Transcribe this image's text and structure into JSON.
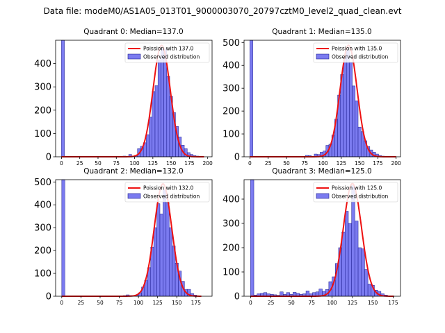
{
  "figure": {
    "suptitle": "Data file: modeM0/AS1A05_013T01_9000003070_20797cztM0_level2_quad_clean.evt"
  },
  "colors": {
    "bar_fill": "#7b7bf0",
    "bar_edge": "#1a1a8c",
    "curve": "#ee1111",
    "axis": "#000000"
  },
  "chart_data": [
    {
      "type": "bar",
      "title": "Quadrant 0: Median=137.0",
      "xlim": [
        -8,
        206
      ],
      "ylim": [
        0,
        500
      ],
      "xticks": [
        0,
        25,
        50,
        75,
        100,
        125,
        150,
        175,
        200
      ],
      "yticks": [
        0,
        100,
        200,
        300,
        400
      ],
      "legend_position": "top-right",
      "legend": [
        "Poission with 137.0",
        "Observed distribution"
      ],
      "bin_width": 4,
      "bins": [
        {
          "x": 0,
          "y": 500
        },
        {
          "x": 68,
          "y": 2
        },
        {
          "x": 84,
          "y": 3
        },
        {
          "x": 92,
          "y": 10
        },
        {
          "x": 96,
          "y": 2
        },
        {
          "x": 100,
          "y": 6
        },
        {
          "x": 104,
          "y": 35
        },
        {
          "x": 108,
          "y": 45
        },
        {
          "x": 112,
          "y": 60
        },
        {
          "x": 116,
          "y": 95
        },
        {
          "x": 120,
          "y": 170
        },
        {
          "x": 124,
          "y": 280
        },
        {
          "x": 128,
          "y": 305
        },
        {
          "x": 132,
          "y": 415
        },
        {
          "x": 136,
          "y": 465
        },
        {
          "x": 140,
          "y": 460
        },
        {
          "x": 144,
          "y": 345
        },
        {
          "x": 148,
          "y": 260
        },
        {
          "x": 152,
          "y": 190
        },
        {
          "x": 156,
          "y": 130
        },
        {
          "x": 160,
          "y": 85
        },
        {
          "x": 164,
          "y": 50
        },
        {
          "x": 168,
          "y": 35
        },
        {
          "x": 172,
          "y": 18
        },
        {
          "x": 176,
          "y": 10
        },
        {
          "x": 180,
          "y": 5
        },
        {
          "x": 184,
          "y": 3
        },
        {
          "x": 188,
          "y": 2
        }
      ],
      "poisson": {
        "lambda": 137.0,
        "peak": 478,
        "x_range": [
          0,
          195
        ]
      }
    },
    {
      "type": "bar",
      "title": "Quadrant 1: Median=135.0",
      "xlim": [
        -8,
        206
      ],
      "ylim": [
        0,
        510
      ],
      "xticks": [
        0,
        25,
        50,
        75,
        100,
        125,
        150,
        175,
        200
      ],
      "yticks": [
        0,
        100,
        200,
        300,
        400,
        500
      ],
      "legend_position": "top-right",
      "legend": [
        "Poission with 135.0",
        "Observed distribution"
      ],
      "bin_width": 4,
      "bins": [
        {
          "x": 0,
          "y": 510
        },
        {
          "x": 72,
          "y": 2
        },
        {
          "x": 76,
          "y": 6
        },
        {
          "x": 80,
          "y": 5
        },
        {
          "x": 88,
          "y": 12
        },
        {
          "x": 92,
          "y": 10
        },
        {
          "x": 96,
          "y": 20
        },
        {
          "x": 100,
          "y": 25
        },
        {
          "x": 104,
          "y": 50
        },
        {
          "x": 108,
          "y": 55
        },
        {
          "x": 112,
          "y": 95
        },
        {
          "x": 116,
          "y": 165
        },
        {
          "x": 120,
          "y": 270
        },
        {
          "x": 124,
          "y": 360
        },
        {
          "x": 128,
          "y": 440
        },
        {
          "x": 132,
          "y": 465
        },
        {
          "x": 136,
          "y": 415
        },
        {
          "x": 140,
          "y": 310
        },
        {
          "x": 144,
          "y": 245
        },
        {
          "x": 148,
          "y": 130
        },
        {
          "x": 152,
          "y": 110
        },
        {
          "x": 156,
          "y": 70
        },
        {
          "x": 160,
          "y": 45
        },
        {
          "x": 164,
          "y": 30
        },
        {
          "x": 168,
          "y": 20
        },
        {
          "x": 172,
          "y": 12
        },
        {
          "x": 176,
          "y": 5
        },
        {
          "x": 180,
          "y": 3
        }
      ],
      "poisson": {
        "lambda": 135.0,
        "peak": 488,
        "x_range": [
          0,
          200
        ]
      }
    },
    {
      "type": "bar",
      "title": "Quadrant 2: Median=132.0",
      "xlim": [
        -8,
        196
      ],
      "ylim": [
        0,
        510
      ],
      "xticks": [
        0,
        25,
        50,
        75,
        100,
        125,
        150,
        175
      ],
      "yticks": [
        0,
        100,
        200,
        300,
        400,
        500
      ],
      "legend_position": "top-right",
      "legend": [
        "Poission with 132.0",
        "Observed distribution"
      ],
      "bin_width": 4,
      "bins": [
        {
          "x": 0,
          "y": 510
        },
        {
          "x": 80,
          "y": 3
        },
        {
          "x": 84,
          "y": 6
        },
        {
          "x": 88,
          "y": 3
        },
        {
          "x": 96,
          "y": 4
        },
        {
          "x": 100,
          "y": 15
        },
        {
          "x": 104,
          "y": 40
        },
        {
          "x": 108,
          "y": 70
        },
        {
          "x": 112,
          "y": 125
        },
        {
          "x": 116,
          "y": 215
        },
        {
          "x": 120,
          "y": 300
        },
        {
          "x": 124,
          "y": 405
        },
        {
          "x": 128,
          "y": 360
        },
        {
          "x": 132,
          "y": 465
        },
        {
          "x": 136,
          "y": 410
        },
        {
          "x": 140,
          "y": 300
        },
        {
          "x": 144,
          "y": 220
        },
        {
          "x": 148,
          "y": 145
        },
        {
          "x": 152,
          "y": 110
        },
        {
          "x": 156,
          "y": 65
        },
        {
          "x": 160,
          "y": 30
        },
        {
          "x": 164,
          "y": 30
        },
        {
          "x": 168,
          "y": 12
        },
        {
          "x": 172,
          "y": 5
        },
        {
          "x": 176,
          "y": 2
        }
      ],
      "poisson": {
        "lambda": 132.0,
        "peak": 492,
        "x_range": [
          0,
          182
        ]
      }
    },
    {
      "type": "bar",
      "title": "Quadrant 3: Median=125.0",
      "xlim": [
        -8,
        184
      ],
      "ylim": [
        0,
        480
      ],
      "xticks": [
        0,
        25,
        50,
        75,
        100,
        125,
        150,
        175
      ],
      "yticks": [
        0,
        100,
        200,
        300,
        400
      ],
      "legend_position": "top-right",
      "legend": [
        "Poission with 125.0",
        "Observed distribution"
      ],
      "bin_width": 4,
      "bins": [
        {
          "x": 0,
          "y": 480
        },
        {
          "x": 4,
          "y": 5
        },
        {
          "x": 8,
          "y": 10
        },
        {
          "x": 12,
          "y": 12
        },
        {
          "x": 16,
          "y": 15
        },
        {
          "x": 20,
          "y": 10
        },
        {
          "x": 24,
          "y": 8
        },
        {
          "x": 28,
          "y": 6
        },
        {
          "x": 32,
          "y": 4
        },
        {
          "x": 36,
          "y": 18
        },
        {
          "x": 40,
          "y": 8
        },
        {
          "x": 44,
          "y": 15
        },
        {
          "x": 48,
          "y": 8
        },
        {
          "x": 52,
          "y": 16
        },
        {
          "x": 56,
          "y": 12
        },
        {
          "x": 60,
          "y": 8
        },
        {
          "x": 64,
          "y": 10
        },
        {
          "x": 68,
          "y": 22
        },
        {
          "x": 72,
          "y": 10
        },
        {
          "x": 76,
          "y": 15
        },
        {
          "x": 80,
          "y": 18
        },
        {
          "x": 84,
          "y": 30
        },
        {
          "x": 88,
          "y": 20
        },
        {
          "x": 92,
          "y": 28
        },
        {
          "x": 96,
          "y": 60
        },
        {
          "x": 100,
          "y": 80
        },
        {
          "x": 104,
          "y": 135
        },
        {
          "x": 108,
          "y": 200
        },
        {
          "x": 112,
          "y": 265
        },
        {
          "x": 116,
          "y": 350
        },
        {
          "x": 120,
          "y": 300
        },
        {
          "x": 124,
          "y": 455
        },
        {
          "x": 128,
          "y": 310
        },
        {
          "x": 132,
          "y": 200
        },
        {
          "x": 136,
          "y": 195
        },
        {
          "x": 140,
          "y": 110
        },
        {
          "x": 144,
          "y": 50
        },
        {
          "x": 148,
          "y": 45
        },
        {
          "x": 152,
          "y": 25
        },
        {
          "x": 156,
          "y": 20
        },
        {
          "x": 160,
          "y": 10
        },
        {
          "x": 164,
          "y": 5
        },
        {
          "x": 168,
          "y": 2
        }
      ],
      "poisson": {
        "lambda": 125.0,
        "peak": 464,
        "x_range": [
          0,
          176
        ]
      }
    }
  ]
}
